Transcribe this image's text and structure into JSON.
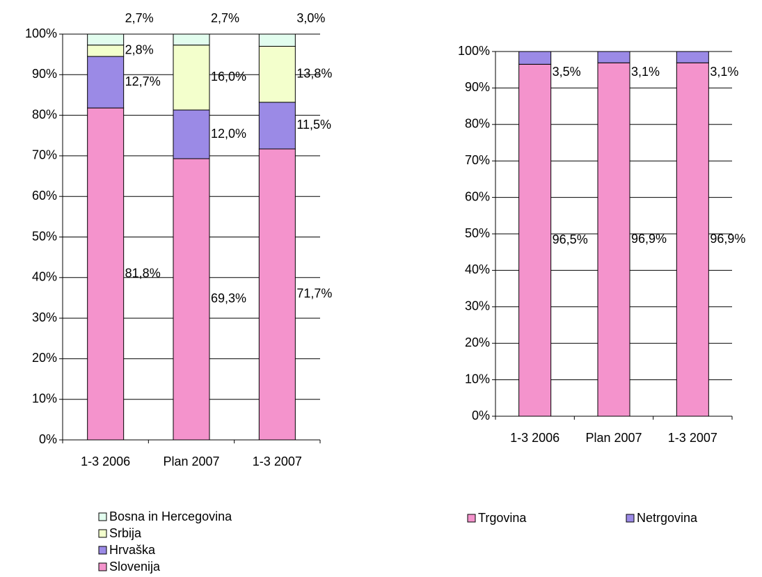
{
  "chart_data": [
    {
      "type": "stacked_bar",
      "categories": [
        "1-3 2006",
        "Plan 2007",
        "1-3 2007"
      ],
      "series": [
        {
          "name": "Slovenija",
          "color": "#f493cc",
          "values": [
            81.8,
            69.3,
            71.7
          ],
          "value_labels": [
            "81,8%",
            "69,3%",
            "71,7%"
          ]
        },
        {
          "name": "Hrvaška",
          "color": "#9b8ae6",
          "values": [
            12.7,
            12.0,
            11.5
          ],
          "value_labels": [
            "12,7%",
            "12,0%",
            "11,5%"
          ]
        },
        {
          "name": "Srbija",
          "color": "#f3ffcc",
          "values": [
            2.8,
            16.0,
            13.8
          ],
          "value_labels": [
            "2,8%",
            "16,0%",
            "13,8%"
          ]
        },
        {
          "name": "Bosna in Hercegovina",
          "color": "#e2fdee",
          "values": [
            2.7,
            2.7,
            3.0
          ],
          "value_labels": [
            "2,7%",
            "2,7%",
            "3,0%"
          ]
        }
      ],
      "ylim": [
        0,
        100
      ],
      "yticks": [
        {
          "value": 0,
          "label": "0%"
        },
        {
          "value": 10,
          "label": "10%"
        },
        {
          "value": 20,
          "label": "20%"
        },
        {
          "value": 30,
          "label": "30%"
        },
        {
          "value": 40,
          "label": "40%"
        },
        {
          "value": 50,
          "label": "50%"
        },
        {
          "value": 60,
          "label": "60%"
        },
        {
          "value": 70,
          "label": "70%"
        },
        {
          "value": 80,
          "label": "80%"
        },
        {
          "value": 90,
          "label": "90%"
        },
        {
          "value": 100,
          "label": "100%"
        }
      ],
      "grid": true,
      "legend": "bottom"
    },
    {
      "type": "stacked_bar",
      "categories": [
        "1-3 2006",
        "Plan 2007",
        "1-3 2007"
      ],
      "series": [
        {
          "name": "Trgovina",
          "color": "#f493cc",
          "values": [
            96.5,
            96.9,
            96.9
          ],
          "value_labels": [
            "96,5%",
            "96,9%",
            "96,9%"
          ]
        },
        {
          "name": "Netrgovina",
          "color": "#9b8ae6",
          "values": [
            3.5,
            3.1,
            3.1
          ],
          "value_labels": [
            "3,5%",
            "3,1%",
            "3,1%"
          ]
        }
      ],
      "ylim": [
        0,
        100
      ],
      "yticks": [
        {
          "value": 0,
          "label": "0%"
        },
        {
          "value": 10,
          "label": "10%"
        },
        {
          "value": 20,
          "label": "20%"
        },
        {
          "value": 30,
          "label": "30%"
        },
        {
          "value": 40,
          "label": "40%"
        },
        {
          "value": 50,
          "label": "50%"
        },
        {
          "value": 60,
          "label": "60%"
        },
        {
          "value": 70,
          "label": "70%"
        },
        {
          "value": 80,
          "label": "80%"
        },
        {
          "value": 90,
          "label": "90%"
        },
        {
          "value": 100,
          "label": "100%"
        }
      ],
      "grid": true,
      "legend": "bottom"
    }
  ]
}
